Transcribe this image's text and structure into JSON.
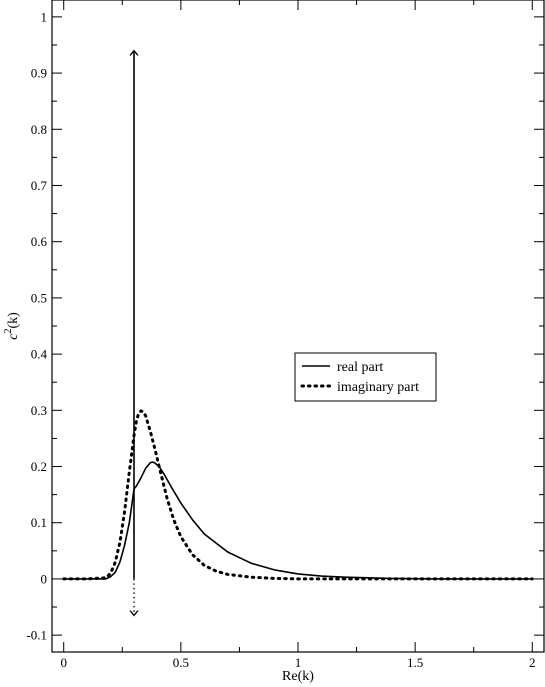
{
  "chart_data": {
    "type": "line",
    "title": "",
    "xlabel": "Re(k)",
    "ylabel_base": "c",
    "ylabel_sup": "2",
    "ylabel_tail": "(k)",
    "xlim": [
      -0.05,
      2.05
    ],
    "ylim": [
      -0.13,
      1.03
    ],
    "x_ticks": [
      0,
      0.5,
      1,
      1.5,
      2
    ],
    "x_tick_labels": [
      "0",
      "0.5",
      "1",
      "1.5",
      "2"
    ],
    "y_ticks": [
      -0.1,
      0,
      0.1,
      0.2,
      0.3,
      0.4,
      0.5,
      0.6,
      0.7,
      0.8,
      0.9,
      1
    ],
    "y_tick_labels": [
      "-0.1",
      "0",
      "0.1",
      "0.2",
      "0.3",
      "0.4",
      "0.5",
      "0.6",
      "0.7",
      "0.8",
      "0.9",
      "1"
    ],
    "grid": false,
    "legend_position": "center-right",
    "series": [
      {
        "name": "real part",
        "style": "solid",
        "color": "#000000",
        "x": [
          0,
          0.1,
          0.18,
          0.2,
          0.22,
          0.24,
          0.26,
          0.28,
          0.29,
          0.3,
          0.31,
          0.33,
          0.35,
          0.37,
          0.38,
          0.39,
          0.41,
          0.43,
          0.46,
          0.5,
          0.55,
          0.6,
          0.7,
          0.8,
          0.9,
          1.0,
          1.1,
          1.2,
          1.3,
          1.4,
          1.6,
          1.8,
          2.0
        ],
        "y": [
          0,
          0,
          0,
          0.004,
          0.012,
          0.03,
          0.06,
          0.1,
          0.13,
          0.16,
          0.165,
          0.18,
          0.197,
          0.207,
          0.208,
          0.206,
          0.198,
          0.185,
          0.163,
          0.135,
          0.105,
          0.08,
          0.048,
          0.028,
          0.016,
          0.009,
          0.005,
          0.003,
          0.002,
          0.001,
          0,
          0,
          0
        ]
      },
      {
        "name": "imaginary part",
        "style": "dotted",
        "color": "#000000",
        "x": [
          0,
          0.1,
          0.18,
          0.2,
          0.22,
          0.24,
          0.26,
          0.28,
          0.3,
          0.31,
          0.32,
          0.33,
          0.34,
          0.35,
          0.37,
          0.39,
          0.41,
          0.44,
          0.47,
          0.5,
          0.55,
          0.6,
          0.65,
          0.7,
          0.8,
          0.9,
          1.0,
          1.2,
          1.5,
          2.0
        ],
        "y": [
          0,
          0,
          0.002,
          0.01,
          0.03,
          0.065,
          0.12,
          0.19,
          0.255,
          0.28,
          0.295,
          0.299,
          0.297,
          0.29,
          0.262,
          0.23,
          0.195,
          0.145,
          0.105,
          0.075,
          0.043,
          0.024,
          0.014,
          0.008,
          0.003,
          0.001,
          0,
          0,
          0,
          0
        ]
      }
    ],
    "annotations": [
      {
        "type": "arrow",
        "style": "solid",
        "x": 0.3,
        "y_from": 0,
        "y_to": 0.94
      },
      {
        "type": "arrow",
        "style": "dotted",
        "x": 0.3,
        "y_from": 0,
        "y_to": -0.065
      }
    ]
  }
}
